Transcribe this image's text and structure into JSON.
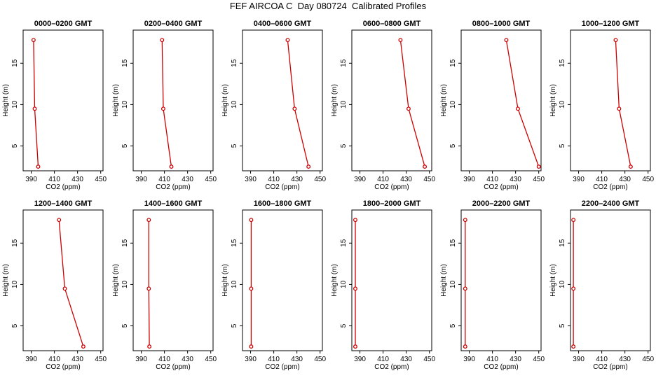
{
  "page": {
    "title": "FEF AIRCOA C  Day 080724  Calibrated Profiles"
  },
  "chart_data": [
    {
      "type": "line",
      "title": "0000–0200 GMT",
      "xlabel": "CO2 (ppm)",
      "ylabel": "Height (m)",
      "xlim": [
        383,
        452
      ],
      "ylim": [
        2,
        19
      ],
      "xticks": [
        390,
        410,
        430,
        450
      ],
      "yticks": [
        5,
        10,
        15
      ],
      "xticklabels": [
        "390",
        "410",
        "430",
        "450"
      ],
      "yticklabels": [
        "5",
        "10",
        "15"
      ],
      "series": [
        {
          "color": "#cc0000",
          "points": [
            [
              396,
              2.5
            ],
            [
              393,
              9.5
            ],
            [
              392,
              17.8
            ]
          ]
        }
      ]
    },
    {
      "type": "line",
      "title": "0200–0400 GMT",
      "xlabel": "CO2 (ppm)",
      "ylabel": "Height (m)",
      "xlim": [
        383,
        452
      ],
      "ylim": [
        2,
        19
      ],
      "xticks": [
        390,
        410,
        430,
        450
      ],
      "yticks": [
        5,
        10,
        15
      ],
      "xticklabels": [
        "390",
        "410",
        "430",
        "450"
      ],
      "yticklabels": [
        "5",
        "10",
        "15"
      ],
      "series": [
        {
          "color": "#cc0000",
          "points": [
            [
              416,
              2.5
            ],
            [
              409,
              9.5
            ],
            [
              408,
              17.8
            ]
          ]
        }
      ]
    },
    {
      "type": "line",
      "title": "0400–0600 GMT",
      "xlabel": "CO2 (ppm)",
      "ylabel": "Height (m)",
      "xlim": [
        383,
        452
      ],
      "ylim": [
        2,
        19
      ],
      "xticks": [
        390,
        410,
        430,
        450
      ],
      "yticks": [
        5,
        10,
        15
      ],
      "xticklabels": [
        "390",
        "410",
        "430",
        "450"
      ],
      "yticklabels": [
        "5",
        "10",
        "15"
      ],
      "series": [
        {
          "color": "#cc0000",
          "points": [
            [
              440,
              2.5
            ],
            [
              428,
              9.5
            ],
            [
              422,
              17.8
            ]
          ]
        }
      ]
    },
    {
      "type": "line",
      "title": "0600–0800 GMT",
      "xlabel": "CO2 (ppm)",
      "ylabel": "Height (m)",
      "xlim": [
        383,
        452
      ],
      "ylim": [
        2,
        19
      ],
      "xticks": [
        390,
        410,
        430,
        450
      ],
      "yticks": [
        5,
        10,
        15
      ],
      "xticklabels": [
        "390",
        "410",
        "430",
        "450"
      ],
      "yticklabels": [
        "5",
        "10",
        "15"
      ],
      "series": [
        {
          "color": "#cc0000",
          "points": [
            [
              446,
              2.5
            ],
            [
              432,
              9.5
            ],
            [
              425,
              17.8
            ]
          ]
        }
      ]
    },
    {
      "type": "line",
      "title": "0800–1000 GMT",
      "xlabel": "CO2 (ppm)",
      "ylabel": "Height (m)",
      "xlim": [
        383,
        452
      ],
      "ylim": [
        2,
        19
      ],
      "xticks": [
        390,
        410,
        430,
        450
      ],
      "yticks": [
        5,
        10,
        15
      ],
      "xticklabels": [
        "390",
        "410",
        "430",
        "450"
      ],
      "yticklabels": [
        "5",
        "10",
        "15"
      ],
      "series": [
        {
          "color": "#cc0000",
          "points": [
            [
              450,
              2.5
            ],
            [
              432,
              9.5
            ],
            [
              422,
              17.8
            ]
          ]
        }
      ]
    },
    {
      "type": "line",
      "title": "1000–1200 GMT",
      "xlabel": "CO2 (ppm)",
      "ylabel": "Height (m)",
      "xlim": [
        383,
        452
      ],
      "ylim": [
        2,
        19
      ],
      "xticks": [
        390,
        410,
        430,
        450
      ],
      "yticks": [
        5,
        10,
        15
      ],
      "xticklabels": [
        "390",
        "410",
        "430",
        "450"
      ],
      "yticklabels": [
        "5",
        "10",
        "15"
      ],
      "series": [
        {
          "color": "#cc0000",
          "points": [
            [
              435,
              2.5
            ],
            [
              425,
              9.5
            ],
            [
              422,
              17.8
            ]
          ]
        }
      ]
    },
    {
      "type": "line",
      "title": "1200–1400 GMT",
      "xlabel": "CO2 (ppm)",
      "ylabel": "Height (m)",
      "xlim": [
        383,
        452
      ],
      "ylim": [
        2,
        19
      ],
      "xticks": [
        390,
        410,
        430,
        450
      ],
      "yticks": [
        5,
        10,
        15
      ],
      "xticklabels": [
        "390",
        "410",
        "430",
        "450"
      ],
      "yticklabels": [
        "5",
        "10",
        "15"
      ],
      "series": [
        {
          "color": "#cc0000",
          "points": [
            [
              435,
              2.5
            ],
            [
              419,
              9.5
            ],
            [
              414,
              17.8
            ]
          ]
        }
      ]
    },
    {
      "type": "line",
      "title": "1400–1600 GMT",
      "xlabel": "CO2 (ppm)",
      "ylabel": "Height (m)",
      "xlim": [
        383,
        452
      ],
      "ylim": [
        2,
        19
      ],
      "xticks": [
        390,
        410,
        430,
        450
      ],
      "yticks": [
        5,
        10,
        15
      ],
      "xticklabels": [
        "390",
        "410",
        "430",
        "450"
      ],
      "yticklabels": [
        "5",
        "10",
        "15"
      ],
      "series": [
        {
          "color": "#cc0000",
          "points": [
            [
              397,
              2.5
            ],
            [
              396.5,
              9.5
            ],
            [
              396.5,
              17.8
            ]
          ]
        }
      ]
    },
    {
      "type": "line",
      "title": "1600–1800 GMT",
      "xlabel": "CO2 (ppm)",
      "ylabel": "Height (m)",
      "xlim": [
        383,
        452
      ],
      "ylim": [
        2,
        19
      ],
      "xticks": [
        390,
        410,
        430,
        450
      ],
      "yticks": [
        5,
        10,
        15
      ],
      "xticklabels": [
        "390",
        "410",
        "430",
        "450"
      ],
      "yticklabels": [
        "5",
        "10",
        "15"
      ],
      "series": [
        {
          "color": "#cc0000",
          "points": [
            [
              390.5,
              2.5
            ],
            [
              390.5,
              9.5
            ],
            [
              390.5,
              17.8
            ]
          ]
        }
      ]
    },
    {
      "type": "line",
      "title": "1800–2000 GMT",
      "xlabel": "CO2 (ppm)",
      "ylabel": "Height (m)",
      "xlim": [
        383,
        452
      ],
      "ylim": [
        2,
        19
      ],
      "xticks": [
        390,
        410,
        430,
        450
      ],
      "yticks": [
        5,
        10,
        15
      ],
      "xticklabels": [
        "390",
        "410",
        "430",
        "450"
      ],
      "yticklabels": [
        "5",
        "10",
        "15"
      ],
      "series": [
        {
          "color": "#cc0000",
          "points": [
            [
              386,
              2.5
            ],
            [
              386,
              9.5
            ],
            [
              386,
              17.8
            ]
          ]
        }
      ]
    },
    {
      "type": "line",
      "title": "2000–2200 GMT",
      "xlabel": "CO2 (ppm)",
      "ylabel": "Height (m)",
      "xlim": [
        383,
        452
      ],
      "ylim": [
        2,
        19
      ],
      "xticks": [
        390,
        410,
        430,
        450
      ],
      "yticks": [
        5,
        10,
        15
      ],
      "xticklabels": [
        "390",
        "410",
        "430",
        "450"
      ],
      "yticklabels": [
        "5",
        "10",
        "15"
      ],
      "series": [
        {
          "color": "#cc0000",
          "points": [
            [
              386.5,
              2.5
            ],
            [
              386.5,
              9.5
            ],
            [
              386.5,
              17.8
            ]
          ]
        }
      ]
    },
    {
      "type": "line",
      "title": "2200–2400 GMT",
      "xlabel": "CO2 (ppm)",
      "ylabel": "Height (m)",
      "xlim": [
        383,
        452
      ],
      "ylim": [
        2,
        19
      ],
      "xticks": [
        390,
        410,
        430,
        450
      ],
      "yticks": [
        5,
        10,
        15
      ],
      "xticklabels": [
        "390",
        "410",
        "430",
        "450"
      ],
      "yticklabels": [
        "5",
        "10",
        "15"
      ],
      "series": [
        {
          "color": "#cc0000",
          "points": [
            [
              385.5,
              2.5
            ],
            [
              385.5,
              9.5
            ],
            [
              385.5,
              17.8
            ]
          ]
        }
      ]
    }
  ]
}
